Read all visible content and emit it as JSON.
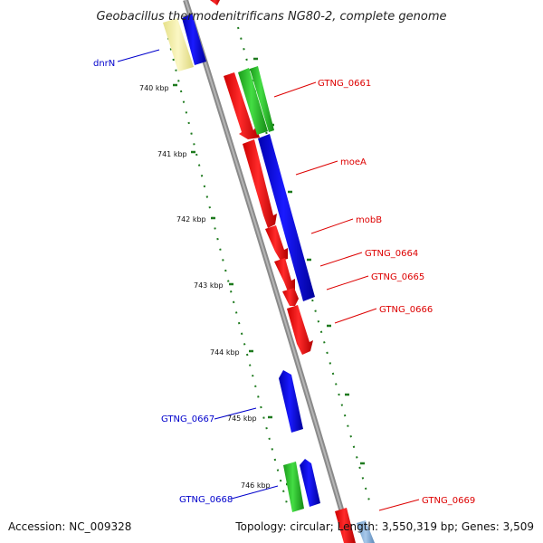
{
  "title": "Geobacillus thermodenitrificans NG80-2, complete genome",
  "accession_text": "Accession: NC_009328",
  "summary_text": "Topology: circular; Length: 3,550,319 bp; Genes: 3,509",
  "colors": {
    "backbone": "#8a8a8a",
    "tick": "#1e7a1e",
    "forward_label": "#0000cc",
    "reverse_label": "#dd0000",
    "red_gene": "#ff0000",
    "blue_gene": "#0000ee",
    "green_gene": "#22bb22",
    "yellow_gene": "#f4f0a8"
  },
  "tick_labels": [
    "740 kbp",
    "741 kbp",
    "742 kbp",
    "743 kbp",
    "744 kbp",
    "745 kbp",
    "746 kbp"
  ],
  "gene_labels": [
    {
      "name": "dnrN",
      "strand": "forward"
    },
    {
      "name": "GTNG_0661",
      "strand": "reverse"
    },
    {
      "name": "moeA",
      "strand": "reverse"
    },
    {
      "name": "mobB",
      "strand": "reverse"
    },
    {
      "name": "GTNG_0664",
      "strand": "reverse"
    },
    {
      "name": "GTNG_0665",
      "strand": "reverse"
    },
    {
      "name": "GTNG_0666",
      "strand": "reverse"
    },
    {
      "name": "GTNG_0667",
      "strand": "forward"
    },
    {
      "name": "GTNG_0668",
      "strand": "forward"
    },
    {
      "name": "GTNG_0669",
      "strand": "reverse"
    }
  ]
}
